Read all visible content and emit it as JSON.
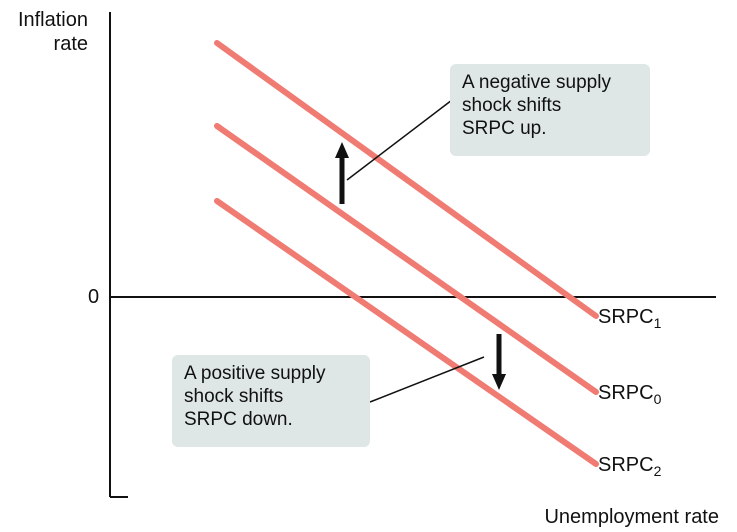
{
  "chart_data": {
    "type": "line",
    "title": "",
    "xlabel": "Unemployment rate",
    "ylabel_lines": [
      "Inflation",
      "rate"
    ],
    "zero_tick": "0",
    "grid": false,
    "series": [
      {
        "base": "SRPC",
        "sub": "1",
        "role": "shifted-up"
      },
      {
        "base": "SRPC",
        "sub": "0",
        "role": "original"
      },
      {
        "base": "SRPC",
        "sub": "2",
        "role": "shifted-down"
      }
    ],
    "annotations": [
      {
        "id": "negative",
        "lines": [
          "A negative supply",
          "shock shifts",
          "SRPC up."
        ],
        "direction": "up"
      },
      {
        "id": "positive",
        "lines": [
          "A positive supply",
          "shock shifts",
          "SRPC down."
        ],
        "direction": "down"
      }
    ],
    "colors": {
      "curve": "#ef7b72",
      "axis": "#111111",
      "box": "#dfe6e6"
    }
  }
}
